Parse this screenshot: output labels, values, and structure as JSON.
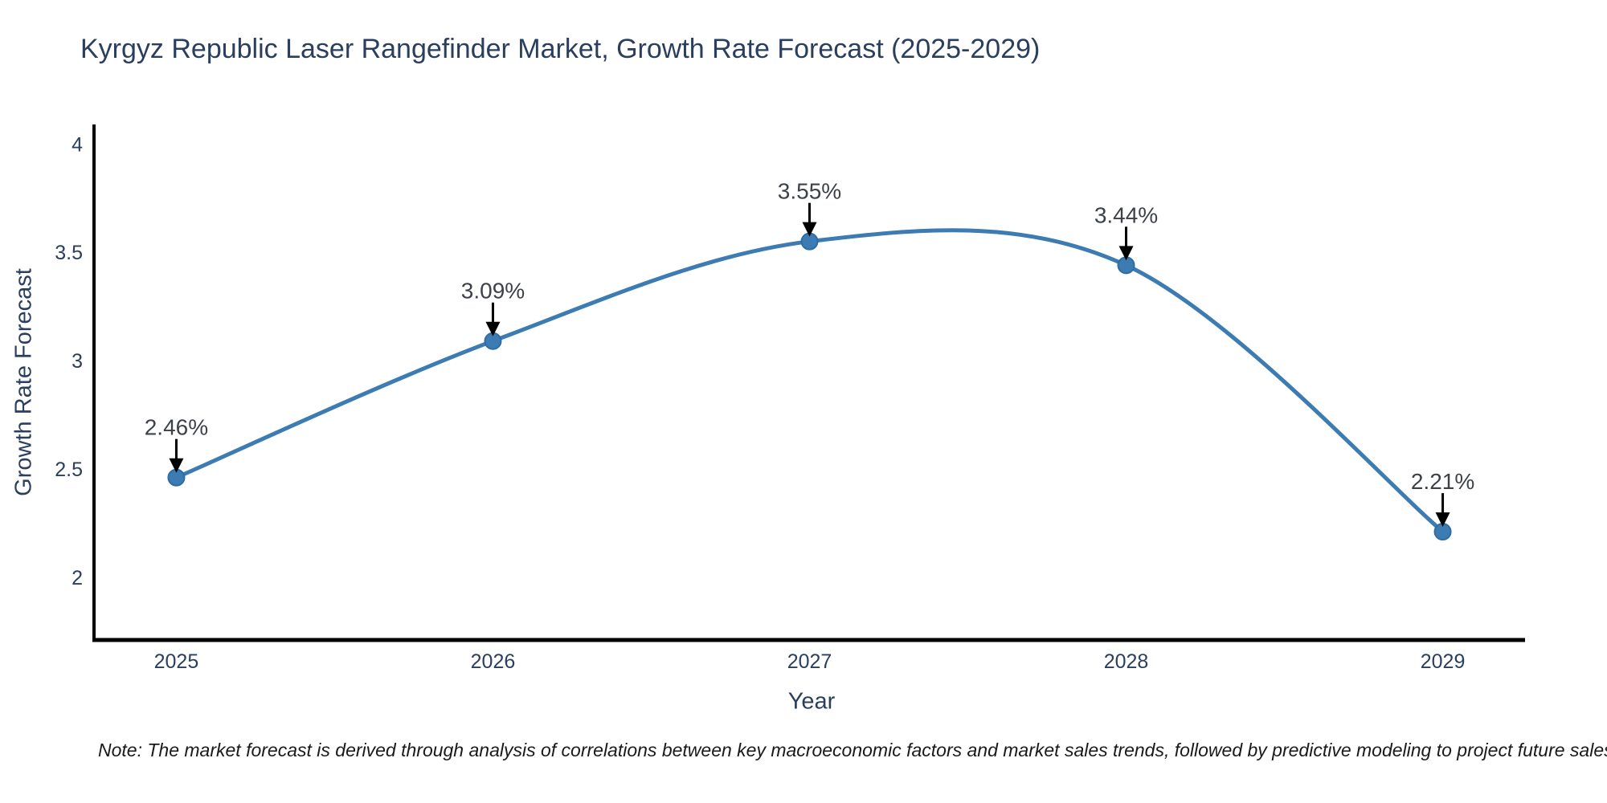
{
  "note": "Note: The market forecast is derived through analysis of correlations between key macroeconomic factors and market sales trends, followed by predictive modeling to project future sales",
  "chart_data": {
    "type": "line",
    "title": "Kyrgyz Republic Laser Rangefinder Market, Growth Rate Forecast (2025-2029)",
    "xlabel": "Year",
    "ylabel": "Growth Rate Forecast",
    "x": [
      2025,
      2026,
      2027,
      2028,
      2029
    ],
    "x_tick_labels": [
      "2025",
      "2026",
      "2027",
      "2028",
      "2029"
    ],
    "values": [
      2.46,
      3.09,
      3.55,
      3.44,
      2.21
    ],
    "point_labels": [
      "2.46%",
      "3.09%",
      "3.55%",
      "3.44%",
      "2.21%"
    ],
    "y_ticks": [
      2,
      2.5,
      3,
      3.5,
      4
    ],
    "y_tick_labels": [
      "2",
      "2.5",
      "3",
      "3.5",
      "4"
    ],
    "xlim": [
      2024.74,
      2029.26
    ],
    "ylim": [
      1.71,
      4.09
    ],
    "grid": false,
    "legend": "none",
    "smooth_spline": true,
    "colors": {
      "line": "#3c7cb2",
      "marker_fill": "#3c7cb2",
      "marker_edge": "#2e6da4",
      "annotation_text": "#3d4248",
      "arrow": "#000000",
      "axis": "#000000",
      "tick_text": "#2a3f5f"
    }
  }
}
